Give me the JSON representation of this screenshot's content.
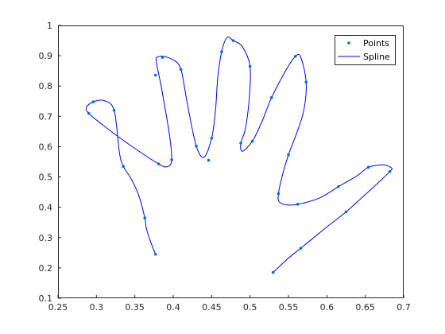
{
  "chart_data": {
    "type": "scatter",
    "title": "",
    "xlabel": "",
    "ylabel": "",
    "xlim": [
      0.25,
      0.7
    ],
    "ylim": [
      0.1,
      1.0
    ],
    "xticks": [
      "0.25",
      "0.3",
      "0.35",
      "0.4",
      "0.45",
      "0.5",
      "0.55",
      "0.6",
      "0.65",
      "0.7"
    ],
    "yticks": [
      "0.1",
      "0.2",
      "0.3",
      "0.4",
      "0.5",
      "0.6",
      "0.7",
      "0.8",
      "0.9",
      "1"
    ],
    "grid": false,
    "legend_position": "top-right",
    "series": [
      {
        "name": "Points",
        "style": "markers",
        "color": "#0072BD",
        "x": [
          0.377,
          0.363,
          0.335,
          0.323,
          0.296,
          0.29,
          0.381,
          0.398,
          0.41,
          0.386,
          0.377,
          0.386,
          0.43,
          0.45,
          0.446,
          0.463,
          0.478,
          0.5,
          0.488,
          0.503,
          0.528,
          0.559,
          0.573,
          0.55,
          0.537,
          0.562,
          0.615,
          0.654,
          0.682,
          0.625,
          0.566,
          0.53
        ],
        "y": [
          0.245,
          0.365,
          0.535,
          0.72,
          0.748,
          0.71,
          0.543,
          0.557,
          0.855,
          0.895,
          0.836,
          0.895,
          0.602,
          0.628,
          0.555,
          0.913,
          0.95,
          0.865,
          0.612,
          0.618,
          0.762,
          0.898,
          0.813,
          0.573,
          0.445,
          0.41,
          0.468,
          0.532,
          0.518,
          0.385,
          0.265,
          0.185
        ]
      },
      {
        "name": "Spline",
        "style": "line",
        "color": "#0000FF",
        "x": [
          0.377,
          0.37,
          0.365,
          0.363,
          0.355,
          0.345,
          0.335,
          0.33,
          0.323,
          0.31,
          0.296,
          0.287,
          0.29,
          0.31,
          0.34,
          0.381,
          0.393,
          0.398,
          0.395,
          0.385,
          0.378,
          0.38,
          0.39,
          0.404,
          0.41,
          0.413,
          0.42,
          0.43,
          0.44,
          0.45,
          0.455,
          0.458,
          0.463,
          0.47,
          0.478,
          0.49,
          0.5,
          0.499,
          0.494,
          0.488,
          0.49,
          0.503,
          0.515,
          0.528,
          0.545,
          0.559,
          0.566,
          0.573,
          0.57,
          0.56,
          0.55,
          0.542,
          0.537,
          0.538,
          0.548,
          0.562,
          0.59,
          0.615,
          0.64,
          0.654,
          0.673,
          0.684,
          0.682,
          0.66,
          0.625,
          0.6,
          0.566,
          0.548,
          0.53
        ],
        "y": [
          0.245,
          0.29,
          0.33,
          0.365,
          0.44,
          0.495,
          0.535,
          0.58,
          0.72,
          0.752,
          0.748,
          0.73,
          0.71,
          0.668,
          0.612,
          0.543,
          0.535,
          0.557,
          0.64,
          0.79,
          0.88,
          0.896,
          0.897,
          0.88,
          0.855,
          0.82,
          0.72,
          0.602,
          0.565,
          0.628,
          0.72,
          0.83,
          0.913,
          0.96,
          0.95,
          0.93,
          0.865,
          0.76,
          0.66,
          0.612,
          0.585,
          0.618,
          0.68,
          0.762,
          0.845,
          0.898,
          0.895,
          0.813,
          0.72,
          0.64,
          0.573,
          0.505,
          0.445,
          0.418,
          0.408,
          0.41,
          0.43,
          0.468,
          0.505,
          0.532,
          0.54,
          0.53,
          0.518,
          0.465,
          0.385,
          0.335,
          0.265,
          0.228,
          0.185
        ]
      }
    ]
  }
}
